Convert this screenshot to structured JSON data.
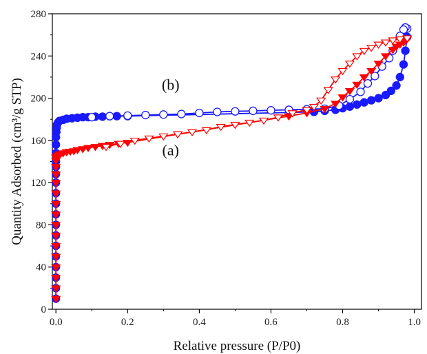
{
  "chart_data": {
    "type": "scatter",
    "title": "",
    "xlabel": "Relative pressure (P/P0)",
    "ylabel": "Quantity Adsorbed (cm³/g STP)",
    "xlim": [
      -0.01,
      1.02
    ],
    "ylim": [
      0,
      280
    ],
    "xticks": [
      "0.0",
      "0.2",
      "0.4",
      "0.6",
      "0.8",
      "1.0"
    ],
    "yticks": [
      "0",
      "40",
      "80",
      "120",
      "160",
      "200",
      "240",
      "280"
    ],
    "grid": false,
    "legend": "none",
    "annotations": [
      {
        "text": "(b)",
        "x": 0.32,
        "y": 208
      },
      {
        "text": "(a)",
        "x": 0.32,
        "y": 146
      }
    ],
    "series": [
      {
        "label": "(b)",
        "branch": "adsorption",
        "color": "#1a1aff",
        "marker": "filled-circle",
        "x": [
          0.0,
          0.0,
          0.0,
          0.0,
          0.0,
          0.0,
          0.0,
          0.0,
          0.0,
          0.0,
          0.0,
          0.0,
          0.0,
          0.0,
          0.0,
          0.0,
          0.0,
          0.0,
          0.001,
          0.002,
          0.003,
          0.006,
          0.01,
          0.02,
          0.03,
          0.045,
          0.06,
          0.075,
          0.09,
          0.11,
          0.13,
          0.15,
          0.17,
          0.2,
          0.72,
          0.75,
          0.78,
          0.8,
          0.82,
          0.84,
          0.86,
          0.88,
          0.9,
          0.92,
          0.935,
          0.95,
          0.96,
          0.97,
          0.975,
          0.98
        ],
        "y": [
          10,
          20,
          30,
          40,
          50,
          60,
          70,
          80,
          90,
          100,
          110,
          120,
          128,
          135,
          140,
          148,
          156,
          163,
          168,
          172,
          175,
          177,
          178.5,
          179.5,
          180.5,
          181,
          181.5,
          182,
          182,
          182.5,
          182.5,
          183,
          183,
          183,
          187,
          188,
          189,
          190.5,
          192,
          194,
          196,
          198,
          200,
          203,
          207,
          212,
          220,
          232,
          245,
          258
        ]
      },
      {
        "label": "(b)",
        "branch": "desorption",
        "color": "#1a1aff",
        "marker": "open-circle",
        "x": [
          0.98,
          0.975,
          0.97,
          0.96,
          0.95,
          0.94,
          0.93,
          0.91,
          0.89,
          0.87,
          0.85,
          0.82,
          0.79,
          0.75,
          0.7,
          0.65,
          0.6,
          0.55,
          0.5,
          0.45,
          0.4,
          0.35,
          0.3,
          0.25,
          0.2,
          0.15,
          0.1
        ],
        "y": [
          266,
          267,
          265,
          259,
          252,
          245,
          238,
          230,
          221,
          214,
          206,
          199,
          193,
          190,
          189.5,
          189,
          188.5,
          188,
          187.5,
          187,
          186,
          185,
          184.5,
          184,
          183.5,
          183,
          182
        ]
      },
      {
        "label": "(a)",
        "branch": "adsorption",
        "color": "#ff0000",
        "marker": "filled-triangle-down",
        "x": [
          0.0,
          0.0,
          0.0,
          0.0,
          0.0,
          0.0,
          0.0,
          0.0,
          0.0,
          0.0,
          0.0,
          0.0,
          0.0,
          0.0,
          0.0,
          0.0,
          0.002,
          0.006,
          0.012,
          0.02,
          0.03,
          0.04,
          0.05,
          0.06,
          0.075,
          0.09,
          0.11,
          0.13,
          0.15,
          0.175,
          0.2,
          0.65,
          0.7,
          0.75,
          0.78,
          0.8,
          0.82,
          0.84,
          0.86,
          0.88,
          0.9,
          0.92,
          0.94,
          0.95,
          0.96,
          0.97,
          0.975,
          0.98
        ],
        "y": [
          10,
          20,
          30,
          40,
          50,
          60,
          70,
          80,
          90,
          100,
          110,
          120,
          128,
          135,
          141,
          144,
          145,
          146,
          147,
          148,
          149,
          149.5,
          150,
          151,
          152,
          153,
          154,
          155,
          156,
          157,
          158,
          183,
          186,
          190,
          195,
          201,
          207,
          213,
          220,
          226,
          233,
          240,
          246,
          249,
          251,
          253,
          255,
          256
        ]
      },
      {
        "label": "(a)",
        "branch": "desorption",
        "color": "#ff0000",
        "marker": "open-triangle-down",
        "x": [
          0.98,
          0.96,
          0.94,
          0.92,
          0.9,
          0.88,
          0.86,
          0.84,
          0.82,
          0.8,
          0.78,
          0.76,
          0.74,
          0.72,
          0.7,
          0.66,
          0.62,
          0.58,
          0.54,
          0.5,
          0.46,
          0.42,
          0.38,
          0.34,
          0.3,
          0.26,
          0.22,
          0.18,
          0.14
        ],
        "y": [
          257,
          256,
          255,
          253,
          251,
          248,
          245,
          240,
          233,
          226,
          218,
          208,
          198,
          192,
          189,
          186,
          182,
          179,
          177,
          175,
          173,
          170,
          168,
          166,
          164,
          162,
          160,
          157,
          154
        ]
      }
    ]
  }
}
